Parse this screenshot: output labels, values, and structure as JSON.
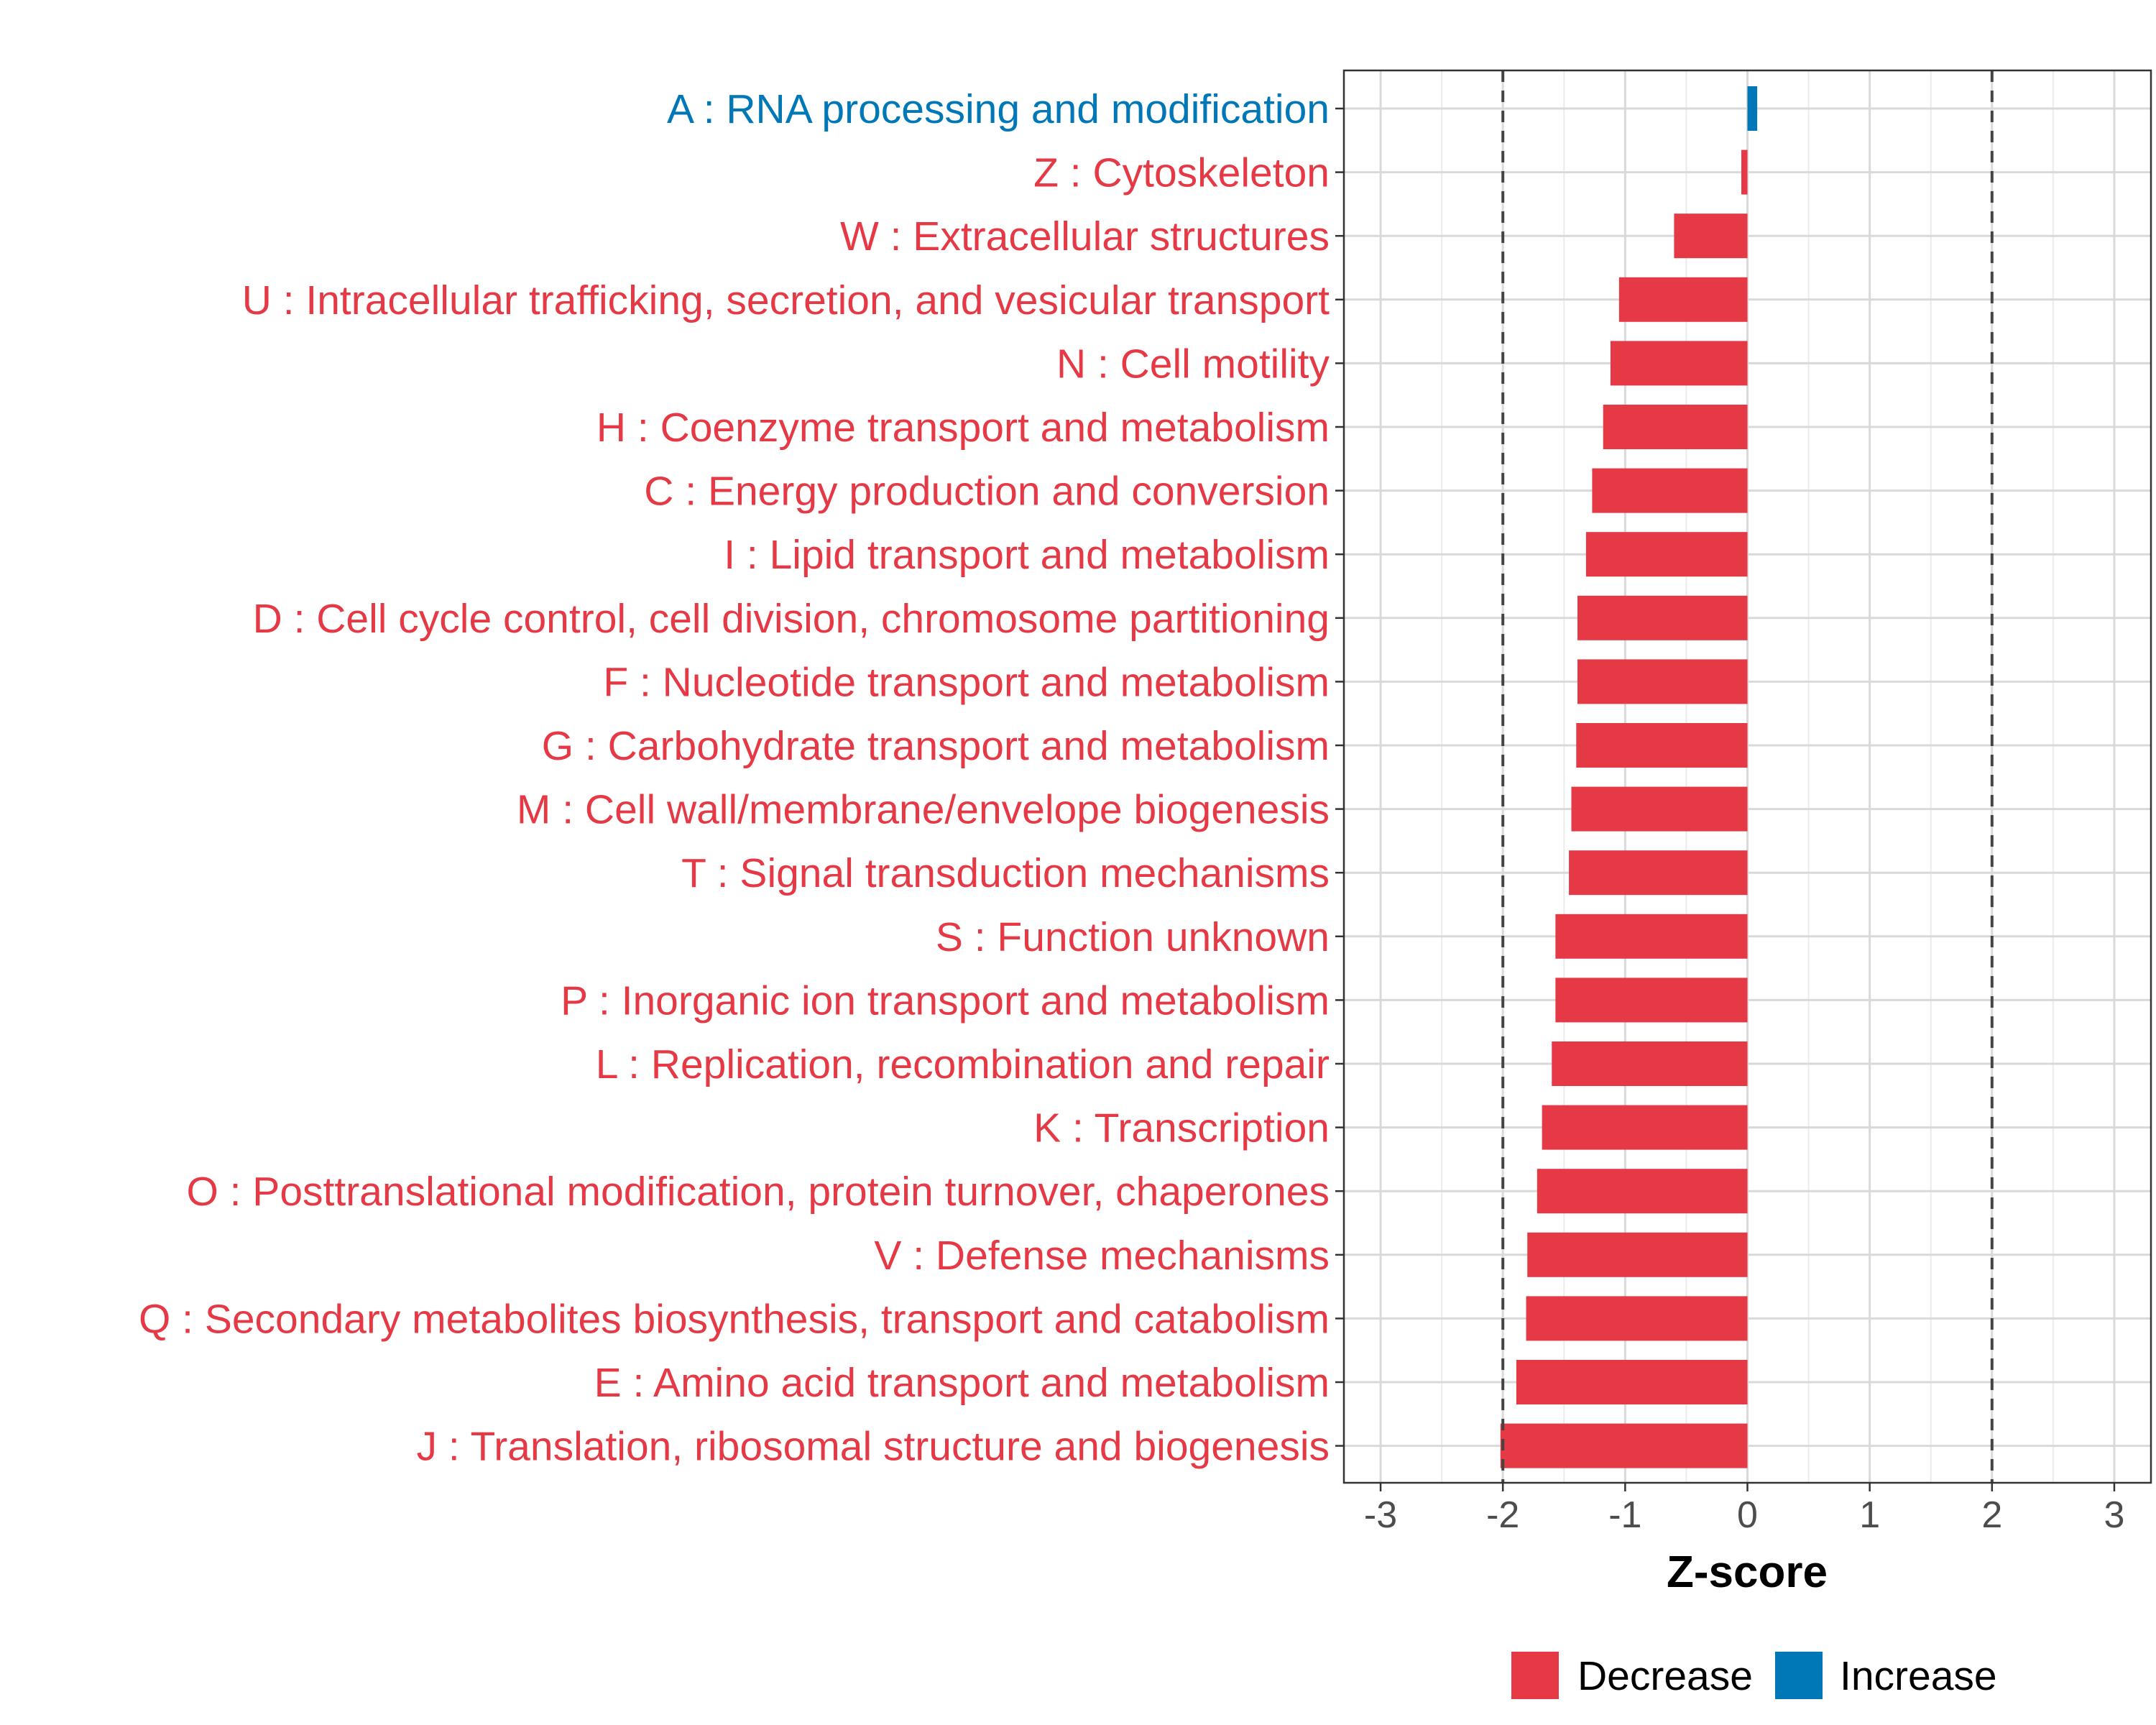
{
  "chart_data": {
    "type": "bar",
    "orientation": "horizontal",
    "title": "",
    "xlabel": "Z-score",
    "ylabel": "",
    "xlim": [
      -3.3,
      3.3
    ],
    "x_ticks": [
      -3,
      -2,
      -1,
      0,
      1,
      2,
      3
    ],
    "x_tick_labels": [
      "-3",
      "-2",
      "-1",
      "0",
      "1",
      "2",
      "3"
    ],
    "reference_lines": [
      -2,
      2
    ],
    "grid": true,
    "legend": {
      "position": "bottom",
      "entries": [
        {
          "label": "Decrease",
          "color": "#E63946"
        },
        {
          "label": "Increase",
          "color": "#0077B6"
        }
      ]
    },
    "colors": {
      "decrease": "#E63946",
      "increase": "#0077B6"
    },
    "categories": [
      "A : RNA processing and modification",
      "Z : Cytoskeleton",
      "W : Extracellular structures",
      "U : Intracellular trafficking, secretion, and vesicular transport",
      "N : Cell motility",
      "H : Coenzyme transport and metabolism",
      "C : Energy production and conversion",
      "I : Lipid transport and metabolism",
      "D : Cell cycle control, cell division, chromosome partitioning",
      "F : Nucleotide transport and metabolism",
      "G : Carbohydrate transport and metabolism",
      "M : Cell wall/membrane/envelope biogenesis",
      "T : Signal transduction mechanisms",
      "S : Function unknown",
      "P : Inorganic ion transport and metabolism",
      "L : Replication, recombination and repair",
      "K : Transcription",
      "O : Posttranslational modification, protein turnover, chaperones",
      "V : Defense mechanisms",
      "Q : Secondary metabolites biosynthesis, transport and catabolism",
      "E : Amino acid transport and metabolism",
      "J : Translation, ribosomal structure and biogenesis"
    ],
    "values": [
      0.08,
      -0.05,
      -0.6,
      -1.05,
      -1.12,
      -1.18,
      -1.27,
      -1.32,
      -1.39,
      -1.39,
      -1.4,
      -1.44,
      -1.46,
      -1.57,
      -1.57,
      -1.6,
      -1.68,
      -1.72,
      -1.8,
      -1.81,
      -1.89,
      -2.02
    ],
    "series_by_category": [
      "Increase",
      "Decrease",
      "Decrease",
      "Decrease",
      "Decrease",
      "Decrease",
      "Decrease",
      "Decrease",
      "Decrease",
      "Decrease",
      "Decrease",
      "Decrease",
      "Decrease",
      "Decrease",
      "Decrease",
      "Decrease",
      "Decrease",
      "Decrease",
      "Decrease",
      "Decrease",
      "Decrease",
      "Decrease"
    ]
  }
}
